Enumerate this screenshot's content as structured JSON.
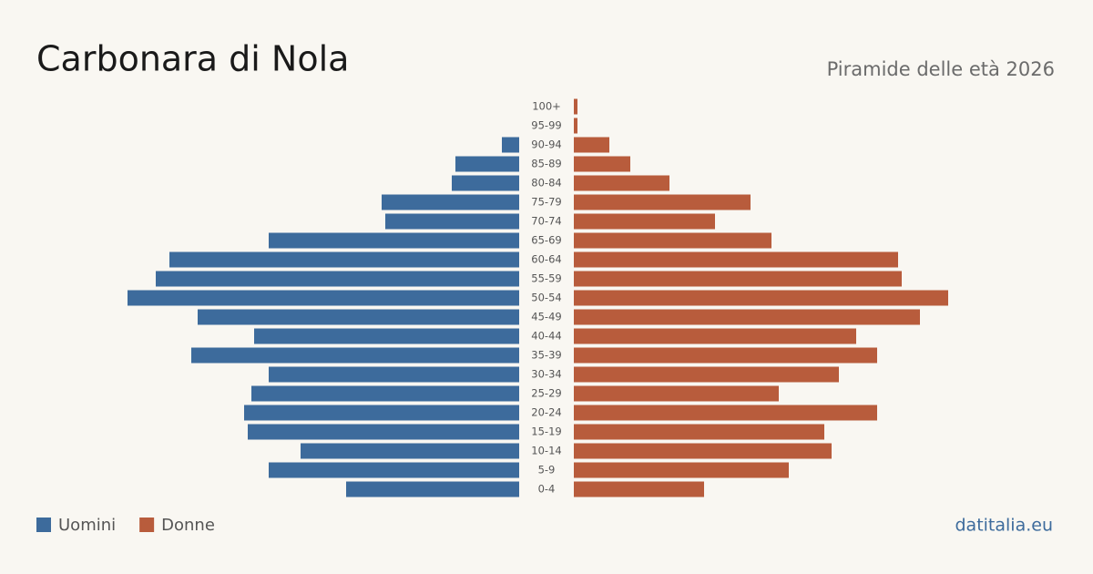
{
  "chart_data": {
    "type": "pyramid",
    "title": "Carbonara di Nola",
    "subtitle": "Piramide delle età 2026",
    "source": "datitalia.eu",
    "categories": [
      "100+",
      "95-99",
      "90-94",
      "85-89",
      "80-84",
      "75-79",
      "70-74",
      "65-69",
      "60-64",
      "55-59",
      "50-54",
      "45-49",
      "40-44",
      "35-39",
      "30-34",
      "25-29",
      "20-24",
      "15-19",
      "10-14",
      "5-9",
      "0-4"
    ],
    "series": [
      {
        "name": "Uomini",
        "color": "#3d6b9c",
        "values": [
          0,
          0,
          19,
          70,
          74,
          151,
          147,
          275,
          384,
          399,
          430,
          353,
          291,
          360,
          275,
          294,
          302,
          298,
          240,
          275,
          190
        ]
      },
      {
        "name": "Donne",
        "color": "#b85c3c",
        "values": [
          4,
          4,
          39,
          62,
          105,
          194,
          155,
          217,
          356,
          360,
          411,
          380,
          310,
          333,
          291,
          225,
          333,
          275,
          283,
          236,
          143
        ]
      }
    ]
  }
}
